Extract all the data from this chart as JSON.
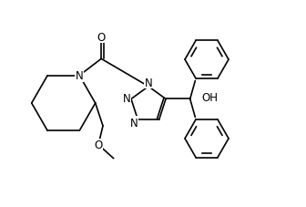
{
  "background_color": "#ffffff",
  "line_color": "#000000",
  "line_width": 1.2,
  "font_size": 8.5,
  "figsize": [
    3.36,
    2.28
  ],
  "dpi": 100,
  "xlim": [
    0,
    10
  ],
  "ylim": [
    0,
    6.8
  ]
}
